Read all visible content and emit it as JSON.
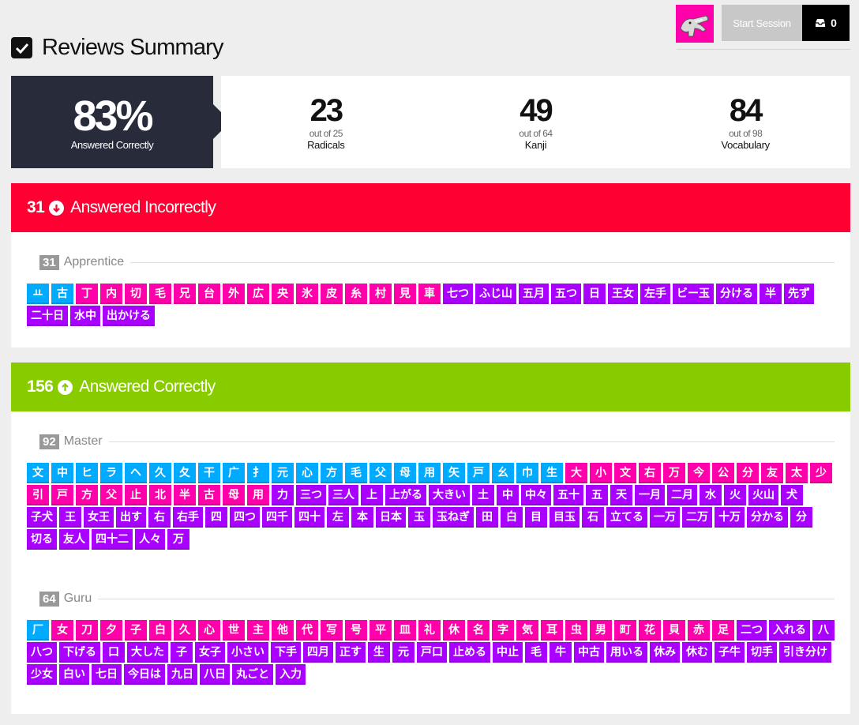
{
  "header": {
    "start_session": "Start Session",
    "inbox_count": "0"
  },
  "page_title": "Reviews Summary",
  "summary": {
    "percent": "83%",
    "percent_label": "Answered Correctly",
    "stats": [
      {
        "num": "23",
        "out": "out of 25",
        "cat": "Radicals"
      },
      {
        "num": "49",
        "out": "out of 64",
        "cat": "Kanji"
      },
      {
        "num": "84",
        "out": "out of 98",
        "cat": "Vocabulary"
      }
    ]
  },
  "colors": {
    "radical": "#00aaff",
    "kanji": "#ff00aa",
    "vocabulary": "#aa00ff",
    "incorrect": "#ff0033",
    "correct": "#88cc00"
  },
  "incorrect": {
    "count": "31",
    "label": "Answered Incorrectly",
    "groups": [
      {
        "count": "31",
        "name": "Apprentice",
        "items": [
          [
            "r",
            "ㅛ"
          ],
          [
            "r",
            "古"
          ],
          [
            "k",
            "丁"
          ],
          [
            "k",
            "内"
          ],
          [
            "k",
            "切"
          ],
          [
            "k",
            "毛"
          ],
          [
            "k",
            "兄"
          ],
          [
            "k",
            "台"
          ],
          [
            "k",
            "外"
          ],
          [
            "k",
            "広"
          ],
          [
            "k",
            "央"
          ],
          [
            "k",
            "氷"
          ],
          [
            "k",
            "皮"
          ],
          [
            "k",
            "糸"
          ],
          [
            "k",
            "村"
          ],
          [
            "k",
            "見"
          ],
          [
            "k",
            "車"
          ],
          [
            "v",
            "七つ"
          ],
          [
            "v",
            "ふじ山"
          ],
          [
            "v",
            "五月"
          ],
          [
            "v",
            "五つ"
          ],
          [
            "v",
            "日"
          ],
          [
            "v",
            "王女"
          ],
          [
            "v",
            "左手"
          ],
          [
            "v",
            "ビー玉"
          ],
          [
            "v",
            "分ける"
          ],
          [
            "v",
            "半"
          ],
          [
            "v",
            "先ず"
          ],
          [
            "v",
            "二十日"
          ],
          [
            "v",
            "水中"
          ],
          [
            "v",
            "出かける"
          ]
        ]
      }
    ]
  },
  "correct": {
    "count": "156",
    "label": "Answered Correctly",
    "groups": [
      {
        "count": "92",
        "name": "Master",
        "items": [
          [
            "r",
            "文"
          ],
          [
            "r",
            "中"
          ],
          [
            "r",
            "ヒ"
          ],
          [
            "r",
            "ラ"
          ],
          [
            "r",
            "ヘ"
          ],
          [
            "r",
            "久"
          ],
          [
            "r",
            "夂"
          ],
          [
            "r",
            "干"
          ],
          [
            "r",
            "广"
          ],
          [
            "r",
            "扌"
          ],
          [
            "r",
            "元"
          ],
          [
            "r",
            "心"
          ],
          [
            "r",
            "方"
          ],
          [
            "r",
            "毛"
          ],
          [
            "r",
            "父"
          ],
          [
            "r",
            "母"
          ],
          [
            "r",
            "用"
          ],
          [
            "r",
            "矢"
          ],
          [
            "r",
            "戸"
          ],
          [
            "r",
            "幺"
          ],
          [
            "r",
            "巾"
          ],
          [
            "r",
            "生"
          ],
          [
            "k",
            "大"
          ],
          [
            "k",
            "小"
          ],
          [
            "k",
            "文"
          ],
          [
            "k",
            "右"
          ],
          [
            "k",
            "万"
          ],
          [
            "k",
            "今"
          ],
          [
            "k",
            "公"
          ],
          [
            "k",
            "分"
          ],
          [
            "k",
            "友"
          ],
          [
            "k",
            "太"
          ],
          [
            "k",
            "少"
          ],
          [
            "k",
            "引"
          ],
          [
            "k",
            "戸"
          ],
          [
            "k",
            "方"
          ],
          [
            "k",
            "父"
          ],
          [
            "k",
            "止"
          ],
          [
            "k",
            "北"
          ],
          [
            "k",
            "半"
          ],
          [
            "k",
            "古"
          ],
          [
            "k",
            "母"
          ],
          [
            "k",
            "用"
          ],
          [
            "v",
            "力"
          ],
          [
            "v",
            "三つ"
          ],
          [
            "v",
            "三人"
          ],
          [
            "v",
            "上"
          ],
          [
            "v",
            "上がる"
          ],
          [
            "v",
            "大きい"
          ],
          [
            "v",
            "土"
          ],
          [
            "v",
            "中"
          ],
          [
            "v",
            "中々"
          ],
          [
            "v",
            "五十"
          ],
          [
            "v",
            "五"
          ],
          [
            "v",
            "天"
          ],
          [
            "v",
            "一月"
          ],
          [
            "v",
            "二月"
          ],
          [
            "v",
            "水"
          ],
          [
            "v",
            "火"
          ],
          [
            "v",
            "火山"
          ],
          [
            "v",
            "犬"
          ],
          [
            "v",
            "子犬"
          ],
          [
            "v",
            "王"
          ],
          [
            "v",
            "女王"
          ],
          [
            "v",
            "出す"
          ],
          [
            "v",
            "右"
          ],
          [
            "v",
            "右手"
          ],
          [
            "v",
            "四"
          ],
          [
            "v",
            "四つ"
          ],
          [
            "v",
            "四千"
          ],
          [
            "v",
            "四十"
          ],
          [
            "v",
            "左"
          ],
          [
            "v",
            "本"
          ],
          [
            "v",
            "日本"
          ],
          [
            "v",
            "玉"
          ],
          [
            "v",
            "玉ねぎ"
          ],
          [
            "v",
            "田"
          ],
          [
            "v",
            "白"
          ],
          [
            "v",
            "目"
          ],
          [
            "v",
            "目玉"
          ],
          [
            "v",
            "石"
          ],
          [
            "v",
            "立てる"
          ],
          [
            "v",
            "一万"
          ],
          [
            "v",
            "二万"
          ],
          [
            "v",
            "十万"
          ],
          [
            "v",
            "分かる"
          ],
          [
            "v",
            "分"
          ],
          [
            "v",
            "切る"
          ],
          [
            "v",
            "友人"
          ],
          [
            "v",
            "四十二"
          ],
          [
            "v",
            "人々"
          ],
          [
            "v",
            "万"
          ]
        ]
      },
      {
        "count": "64",
        "name": "Guru",
        "items": [
          [
            "r",
            "厂"
          ],
          [
            "k",
            "女"
          ],
          [
            "k",
            "刀"
          ],
          [
            "k",
            "夕"
          ],
          [
            "k",
            "子"
          ],
          [
            "k",
            "白"
          ],
          [
            "k",
            "久"
          ],
          [
            "k",
            "心"
          ],
          [
            "k",
            "世"
          ],
          [
            "k",
            "主"
          ],
          [
            "k",
            "他"
          ],
          [
            "k",
            "代"
          ],
          [
            "k",
            "写"
          ],
          [
            "k",
            "号"
          ],
          [
            "k",
            "平"
          ],
          [
            "k",
            "皿"
          ],
          [
            "k",
            "礼"
          ],
          [
            "k",
            "休"
          ],
          [
            "k",
            "名"
          ],
          [
            "k",
            "字"
          ],
          [
            "k",
            "気"
          ],
          [
            "k",
            "耳"
          ],
          [
            "k",
            "虫"
          ],
          [
            "k",
            "男"
          ],
          [
            "k",
            "町"
          ],
          [
            "k",
            "花"
          ],
          [
            "k",
            "貝"
          ],
          [
            "k",
            "赤"
          ],
          [
            "k",
            "足"
          ],
          [
            "v",
            "二つ"
          ],
          [
            "v",
            "入れる"
          ],
          [
            "v",
            "八"
          ],
          [
            "v",
            "八つ"
          ],
          [
            "v",
            "下げる"
          ],
          [
            "v",
            "口"
          ],
          [
            "v",
            "大した"
          ],
          [
            "v",
            "子"
          ],
          [
            "v",
            "女子"
          ],
          [
            "v",
            "小さい"
          ],
          [
            "v",
            "下手"
          ],
          [
            "v",
            "四月"
          ],
          [
            "v",
            "正す"
          ],
          [
            "v",
            "生"
          ],
          [
            "v",
            "元"
          ],
          [
            "v",
            "戸口"
          ],
          [
            "v",
            "止める"
          ],
          [
            "v",
            "中止"
          ],
          [
            "v",
            "毛"
          ],
          [
            "v",
            "牛"
          ],
          [
            "v",
            "中古"
          ],
          [
            "v",
            "用いる"
          ],
          [
            "v",
            "休み"
          ],
          [
            "v",
            "休む"
          ],
          [
            "v",
            "子牛"
          ],
          [
            "v",
            "切手"
          ],
          [
            "v",
            "引き分け"
          ],
          [
            "v",
            "少女"
          ],
          [
            "v",
            "白い"
          ],
          [
            "v",
            "七日"
          ],
          [
            "v",
            "今日は"
          ],
          [
            "v",
            "九日"
          ],
          [
            "v",
            "八日"
          ],
          [
            "v",
            "丸ごと"
          ],
          [
            "v",
            "入力"
          ]
        ]
      }
    ]
  }
}
